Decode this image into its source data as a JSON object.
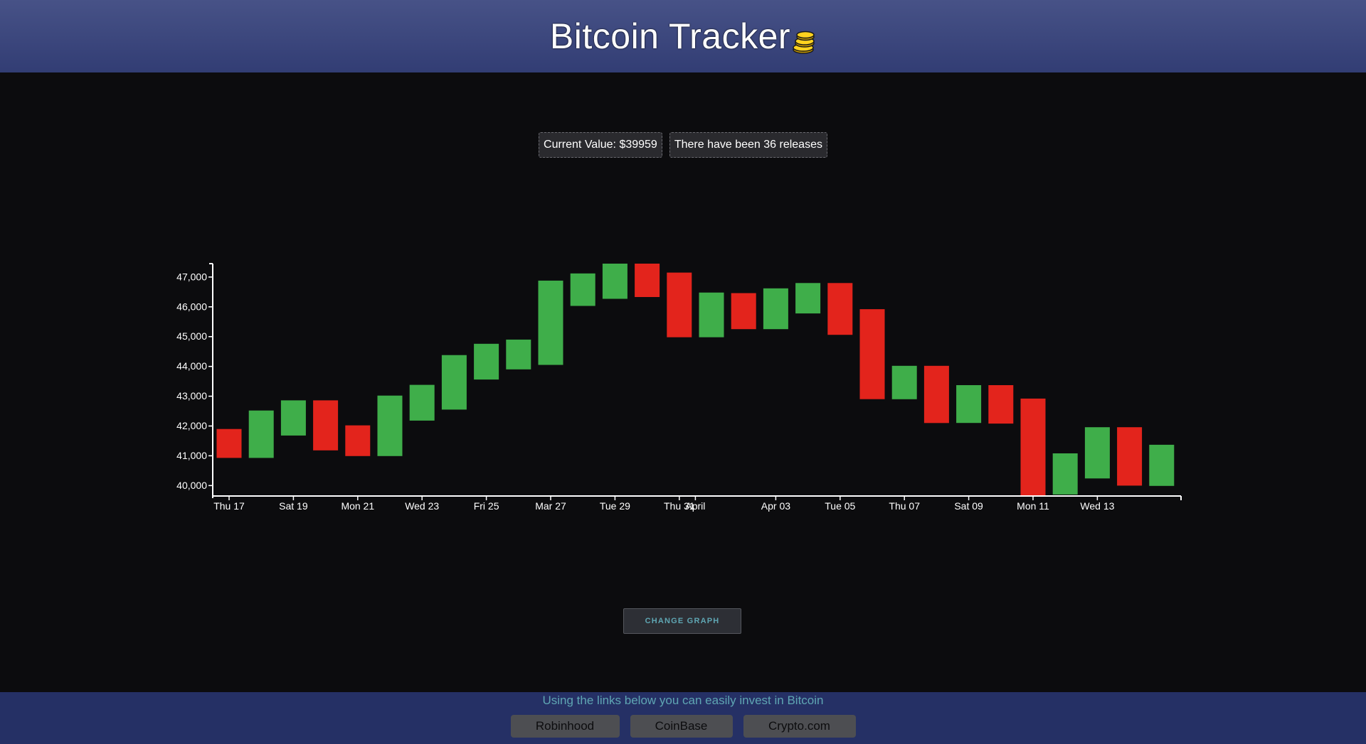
{
  "header": {
    "title": "Bitcoin Tracker",
    "icon": "coins-icon"
  },
  "info": {
    "current_value": "Current Value: $39959",
    "releases": "There have been 36 releases"
  },
  "change_graph_label": "CHANGE GRAPH",
  "footer": {
    "text": "Using the links below you can easily invest in Bitcoin",
    "links": [
      "Robinhood",
      "CoinBase",
      "Crypto.com"
    ]
  },
  "colors": {
    "up": "#3fae4a",
    "down": "#e3241c",
    "header": "#3a4580",
    "footer": "#253065",
    "accent_text": "#5fa6b3"
  },
  "chart_data": {
    "type": "candlestick",
    "title": "",
    "xlabel": "",
    "ylabel": "",
    "ylim": [
      39650,
      47450
    ],
    "yticks": [
      40000,
      41000,
      42000,
      43000,
      44000,
      45000,
      46000,
      47000
    ],
    "ytick_labels": [
      "40,000",
      "41,000",
      "42,000",
      "43,000",
      "44,000",
      "45,000",
      "46,000",
      "47,000"
    ],
    "x_start": "2022-03-17",
    "x_labels": [
      {
        "date": "2022-03-17",
        "label": "Thu 17"
      },
      {
        "date": "2022-03-19",
        "label": "Sat 19"
      },
      {
        "date": "2022-03-21",
        "label": "Mon 21"
      },
      {
        "date": "2022-03-23",
        "label": "Wed 23"
      },
      {
        "date": "2022-03-25",
        "label": "Fri 25"
      },
      {
        "date": "2022-03-27",
        "label": "Mar 27"
      },
      {
        "date": "2022-03-29",
        "label": "Tue 29"
      },
      {
        "date": "2022-03-31",
        "label": "Thu 31"
      },
      {
        "date": "2022-04-01",
        "label": "April"
      },
      {
        "date": "2022-04-03",
        "label": "Apr 03"
      },
      {
        "date": "2022-04-05",
        "label": "Tue 05"
      },
      {
        "date": "2022-04-07",
        "label": "Thu 07"
      },
      {
        "date": "2022-04-09",
        "label": "Sat 09"
      },
      {
        "date": "2022-04-11",
        "label": "Mon 11"
      },
      {
        "date": "2022-04-13",
        "label": "Wed 13"
      }
    ],
    "candles": [
      {
        "date": "2022-03-17",
        "open": 41900,
        "close": 40930
      },
      {
        "date": "2022-03-18",
        "open": 40930,
        "close": 42520
      },
      {
        "date": "2022-03-19",
        "open": 41680,
        "close": 42860
      },
      {
        "date": "2022-03-20",
        "open": 42860,
        "close": 41180
      },
      {
        "date": "2022-03-21",
        "open": 42020,
        "close": 40990
      },
      {
        "date": "2022-03-22",
        "open": 40990,
        "close": 43020
      },
      {
        "date": "2022-03-23",
        "open": 42180,
        "close": 43380
      },
      {
        "date": "2022-03-24",
        "open": 42550,
        "close": 44380
      },
      {
        "date": "2022-03-25",
        "open": 43560,
        "close": 44760
      },
      {
        "date": "2022-03-26",
        "open": 43900,
        "close": 44900
      },
      {
        "date": "2022-03-27",
        "open": 44050,
        "close": 46880
      },
      {
        "date": "2022-03-28",
        "open": 46030,
        "close": 47120
      },
      {
        "date": "2022-03-29",
        "open": 46270,
        "close": 47450
      },
      {
        "date": "2022-03-30",
        "open": 47450,
        "close": 46330
      },
      {
        "date": "2022-03-31",
        "open": 47150,
        "close": 44980
      },
      {
        "date": "2022-04-01",
        "open": 44980,
        "close": 46480
      },
      {
        "date": "2022-04-02",
        "open": 46460,
        "close": 45250
      },
      {
        "date": "2022-04-03",
        "open": 45250,
        "close": 46620
      },
      {
        "date": "2022-04-04",
        "open": 45780,
        "close": 46800
      },
      {
        "date": "2022-04-05",
        "open": 46800,
        "close": 45060
      },
      {
        "date": "2022-04-06",
        "open": 45920,
        "close": 42900
      },
      {
        "date": "2022-04-07",
        "open": 42900,
        "close": 44020
      },
      {
        "date": "2022-04-08",
        "open": 44020,
        "close": 42100
      },
      {
        "date": "2022-04-09",
        "open": 42100,
        "close": 43370
      },
      {
        "date": "2022-04-10",
        "open": 43370,
        "close": 42080
      },
      {
        "date": "2022-04-11",
        "open": 42920,
        "close": 39670
      },
      {
        "date": "2022-04-12",
        "open": 39700,
        "close": 41080
      },
      {
        "date": "2022-04-13",
        "open": 40240,
        "close": 41960
      },
      {
        "date": "2022-04-14",
        "open": 41960,
        "close": 40000
      },
      {
        "date": "2022-04-15",
        "open": 39990,
        "close": 41370
      }
    ],
    "grid": false,
    "legend": "none"
  }
}
